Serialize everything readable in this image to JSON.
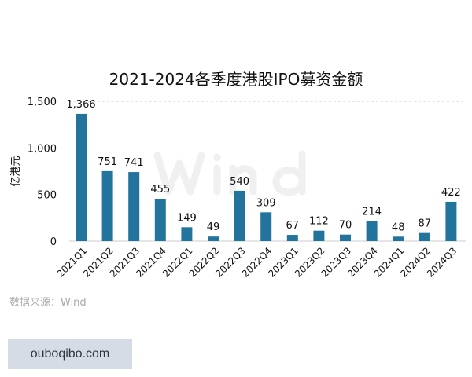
{
  "chart_data": {
    "type": "bar",
    "title": "2021-2024各季度港股IPO募资金额",
    "ylabel": "亿港元",
    "xlabel": "",
    "ylim": [
      0,
      1500
    ],
    "yticks": [
      "0",
      "500",
      "1,000",
      "1,500"
    ],
    "categories": [
      "2021Q1",
      "2021Q2",
      "2021Q3",
      "2021Q4",
      "2022Q1",
      "2022Q2",
      "2022Q3",
      "2022Q4",
      "2023Q1",
      "2023Q2",
      "2023Q3",
      "2023Q4",
      "2024Q1",
      "2024Q2",
      "2024Q3"
    ],
    "values": [
      1366,
      751,
      741,
      455,
      149,
      49,
      540,
      309,
      67,
      112,
      70,
      214,
      48,
      87,
      422
    ],
    "data_labels": [
      "1,366",
      "751",
      "741",
      "455",
      "149",
      "49",
      "540",
      "309",
      "67",
      "112",
      "70",
      "214",
      "48",
      "87",
      "422"
    ],
    "bar_color": "#23749d",
    "grid": "top dashed line only",
    "watermark": "Wind"
  },
  "source": "数据来源：Wind",
  "site_badge": "ouboqibo.com"
}
